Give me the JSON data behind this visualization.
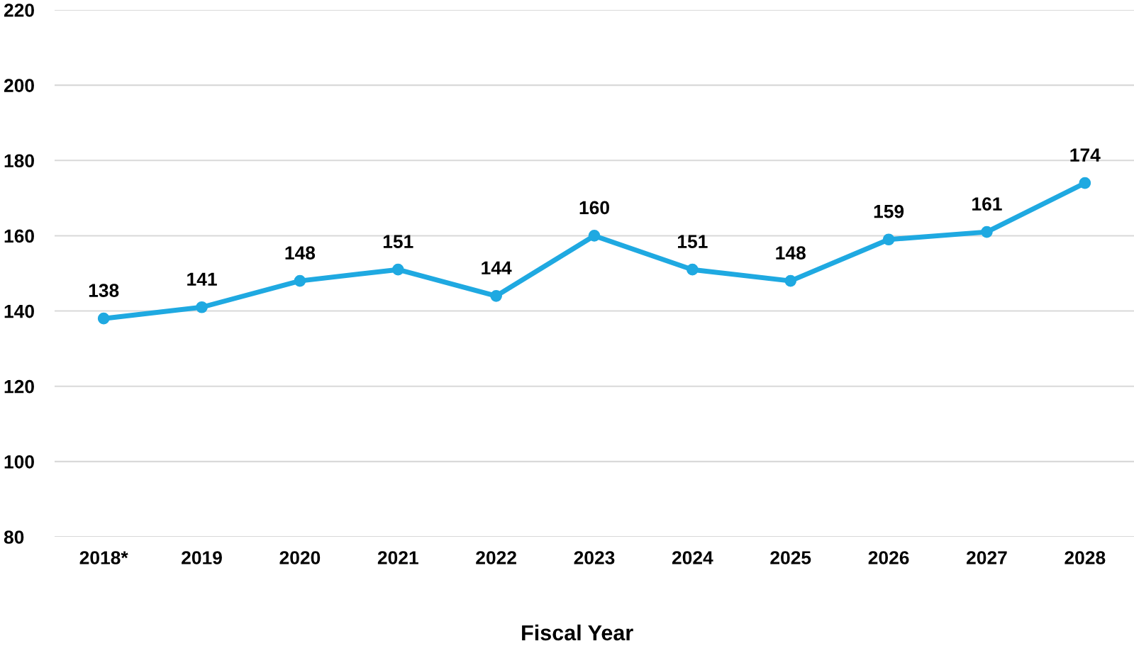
{
  "chart_data": {
    "type": "line",
    "xlabel": "Fiscal Year",
    "categories": [
      "2018*",
      "2019",
      "2020",
      "2021",
      "2022",
      "2023",
      "2024",
      "2025",
      "2026",
      "2027",
      "2028"
    ],
    "series": [
      {
        "color": "#1fa9e1",
        "values": [
          138,
          141,
          148,
          151,
          144,
          160,
          151,
          148,
          159,
          161,
          174
        ]
      }
    ],
    "ylim": [
      80,
      220
    ],
    "yticks": [
      80,
      100,
      120,
      140,
      160,
      180,
      200,
      220
    ],
    "grid": "y",
    "marker": "circle",
    "line_style": "solid",
    "data_labels": true
  }
}
